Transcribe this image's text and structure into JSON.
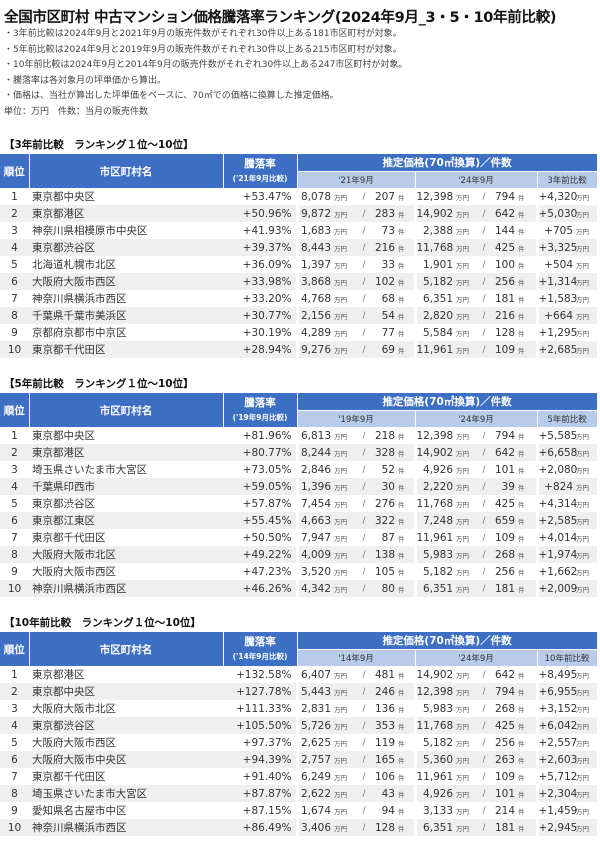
{
  "title": "全国市区町村 中古マンション価格騰落率ランキング(2024年9月_3・5・10年前比較)",
  "notes": [
    "・3年前比較は2024年9月と2021年9月の販売件数がそれぞれ30件以上ある181市区町村が対象。",
    "・5年前比較は2024年9月と2019年9月の販売件数がそれぞれ30件以上ある215市区町村が対象。",
    "・10年前比較は2024年9月と2014年9月の販売件数がそれぞれ30件以上ある247市区町村が対象。",
    "・騰落率は各対象月の坪単価から算出。",
    "・価格は、当社が算出した坪単価をベースに、70㎡での価格に換算した推定価格。",
    "単位：万円　件数：当月の販売件数"
  ],
  "units": {
    "yen": "万円",
    "count": "件",
    "slash": "/"
  },
  "headers": {
    "rank": "順位",
    "name": "市区町村名",
    "rate": "騰落率",
    "price_group": "推定価格(70㎡換算)／件数",
    "now_month": "'24年9月"
  },
  "sections": [
    {
      "title": "【3年前比較　ランキング１位～10位】",
      "rate_sub": "('21年9月比較)",
      "past_month": "'21年9月",
      "diff_label": "3年前比較",
      "rows": [
        {
          "rank": "1",
          "name": "東京都中央区",
          "rate": "+53.47%",
          "past_price": "8,078",
          "past_count": "207",
          "now_price": "12,398",
          "now_count": "794",
          "diff": "+4,320"
        },
        {
          "rank": "2",
          "name": "東京都港区",
          "rate": "+50.96%",
          "past_price": "9,872",
          "past_count": "283",
          "now_price": "14,902",
          "now_count": "642",
          "diff": "+5,030"
        },
        {
          "rank": "3",
          "name": "神奈川県相模原市中央区",
          "rate": "+41.93%",
          "past_price": "1,683",
          "past_count": "73",
          "now_price": "2,388",
          "now_count": "144",
          "diff": "+705"
        },
        {
          "rank": "4",
          "name": "東京都渋谷区",
          "rate": "+39.37%",
          "past_price": "8,443",
          "past_count": "216",
          "now_price": "11,768",
          "now_count": "425",
          "diff": "+3,325"
        },
        {
          "rank": "5",
          "name": "北海道札幌市北区",
          "rate": "+36.09%",
          "past_price": "1,397",
          "past_count": "33",
          "now_price": "1,901",
          "now_count": "100",
          "diff": "+504"
        },
        {
          "rank": "6",
          "name": "大阪府大阪市西区",
          "rate": "+33.98%",
          "past_price": "3,868",
          "past_count": "102",
          "now_price": "5,182",
          "now_count": "256",
          "diff": "+1,314"
        },
        {
          "rank": "7",
          "name": "神奈川県横浜市西区",
          "rate": "+33.20%",
          "past_price": "4,768",
          "past_count": "68",
          "now_price": "6,351",
          "now_count": "181",
          "diff": "+1,583"
        },
        {
          "rank": "8",
          "name": "千葉県千葉市美浜区",
          "rate": "+30.77%",
          "past_price": "2,156",
          "past_count": "54",
          "now_price": "2,820",
          "now_count": "216",
          "diff": "+664"
        },
        {
          "rank": "9",
          "name": "京都府京都市中京区",
          "rate": "+30.19%",
          "past_price": "4,289",
          "past_count": "77",
          "now_price": "5,584",
          "now_count": "128",
          "diff": "+1,295"
        },
        {
          "rank": "10",
          "name": "東京都千代田区",
          "rate": "+28.94%",
          "past_price": "9,276",
          "past_count": "69",
          "now_price": "11,961",
          "now_count": "109",
          "diff": "+2,685"
        }
      ]
    },
    {
      "title": "【5年前比較　ランキング１位～10位】",
      "rate_sub": "('19年9月比較)",
      "past_month": "'19年9月",
      "diff_label": "5年前比較",
      "rows": [
        {
          "rank": "1",
          "name": "東京都中央区",
          "rate": "+81.96%",
          "past_price": "6,813",
          "past_count": "218",
          "now_price": "12,398",
          "now_count": "794",
          "diff": "+5,585"
        },
        {
          "rank": "2",
          "name": "東京都港区",
          "rate": "+80.77%",
          "past_price": "8,244",
          "past_count": "328",
          "now_price": "14,902",
          "now_count": "642",
          "diff": "+6,658"
        },
        {
          "rank": "3",
          "name": "埼玉県さいたま市大宮区",
          "rate": "+73.05%",
          "past_price": "2,846",
          "past_count": "52",
          "now_price": "4,926",
          "now_count": "101",
          "diff": "+2,080"
        },
        {
          "rank": "4",
          "name": "千葉県印西市",
          "rate": "+59.05%",
          "past_price": "1,396",
          "past_count": "30",
          "now_price": "2,220",
          "now_count": "39",
          "diff": "+824"
        },
        {
          "rank": "5",
          "name": "東京都渋谷区",
          "rate": "+57.87%",
          "past_price": "7,454",
          "past_count": "276",
          "now_price": "11,768",
          "now_count": "425",
          "diff": "+4,314"
        },
        {
          "rank": "6",
          "name": "東京都江東区",
          "rate": "+55.45%",
          "past_price": "4,663",
          "past_count": "322",
          "now_price": "7,248",
          "now_count": "659",
          "diff": "+2,585"
        },
        {
          "rank": "7",
          "name": "東京都千代田区",
          "rate": "+50.50%",
          "past_price": "7,947",
          "past_count": "87",
          "now_price": "11,961",
          "now_count": "109",
          "diff": "+4,014"
        },
        {
          "rank": "8",
          "name": "大阪府大阪市北区",
          "rate": "+49.22%",
          "past_price": "4,009",
          "past_count": "138",
          "now_price": "5,983",
          "now_count": "268",
          "diff": "+1,974"
        },
        {
          "rank": "9",
          "name": "大阪府大阪市西区",
          "rate": "+47.23%",
          "past_price": "3,520",
          "past_count": "105",
          "now_price": "5,182",
          "now_count": "256",
          "diff": "+1,662"
        },
        {
          "rank": "10",
          "name": "神奈川県横浜市西区",
          "rate": "+46.26%",
          "past_price": "4,342",
          "past_count": "80",
          "now_price": "6,351",
          "now_count": "181",
          "diff": "+2,009"
        }
      ]
    },
    {
      "title": "【10年前比較　ランキング１位～10位】",
      "rate_sub": "('14年9月比較)",
      "past_month": "'14年9月",
      "diff_label": "10年前比較",
      "rows": [
        {
          "rank": "1",
          "name": "東京都港区",
          "rate": "+132.58%",
          "past_price": "6,407",
          "past_count": "481",
          "now_price": "14,902",
          "now_count": "642",
          "diff": "+8,495"
        },
        {
          "rank": "2",
          "name": "東京都中央区",
          "rate": "+127.78%",
          "past_price": "5,443",
          "past_count": "246",
          "now_price": "12,398",
          "now_count": "794",
          "diff": "+6,955"
        },
        {
          "rank": "3",
          "name": "大阪府大阪市北区",
          "rate": "+111.33%",
          "past_price": "2,831",
          "past_count": "136",
          "now_price": "5,983",
          "now_count": "268",
          "diff": "+3,152"
        },
        {
          "rank": "4",
          "name": "東京都渋谷区",
          "rate": "+105.50%",
          "past_price": "5,726",
          "past_count": "353",
          "now_price": "11,768",
          "now_count": "425",
          "diff": "+6,042"
        },
        {
          "rank": "5",
          "name": "大阪府大阪市西区",
          "rate": "+97.37%",
          "past_price": "2,625",
          "past_count": "119",
          "now_price": "5,182",
          "now_count": "256",
          "diff": "+2,557"
        },
        {
          "rank": "6",
          "name": "大阪府大阪市中央区",
          "rate": "+94.39%",
          "past_price": "2,757",
          "past_count": "165",
          "now_price": "5,360",
          "now_count": "263",
          "diff": "+2,603"
        },
        {
          "rank": "7",
          "name": "東京都千代田区",
          "rate": "+91.40%",
          "past_price": "6,249",
          "past_count": "106",
          "now_price": "11,961",
          "now_count": "109",
          "diff": "+5,712"
        },
        {
          "rank": "8",
          "name": "埼玉県さいたま市大宮区",
          "rate": "+87.87%",
          "past_price": "2,622",
          "past_count": "43",
          "now_price": "4,926",
          "now_count": "101",
          "diff": "+2,304"
        },
        {
          "rank": "9",
          "name": "愛知県名古屋市中区",
          "rate": "+87.15%",
          "past_price": "1,674",
          "past_count": "94",
          "now_price": "3,133",
          "now_count": "214",
          "diff": "+1,459"
        },
        {
          "rank": "10",
          "name": "神奈川県横浜市西区",
          "rate": "+86.49%",
          "past_price": "3,406",
          "past_count": "128",
          "now_price": "6,351",
          "now_count": "181",
          "diff": "+2,945"
        }
      ]
    }
  ]
}
